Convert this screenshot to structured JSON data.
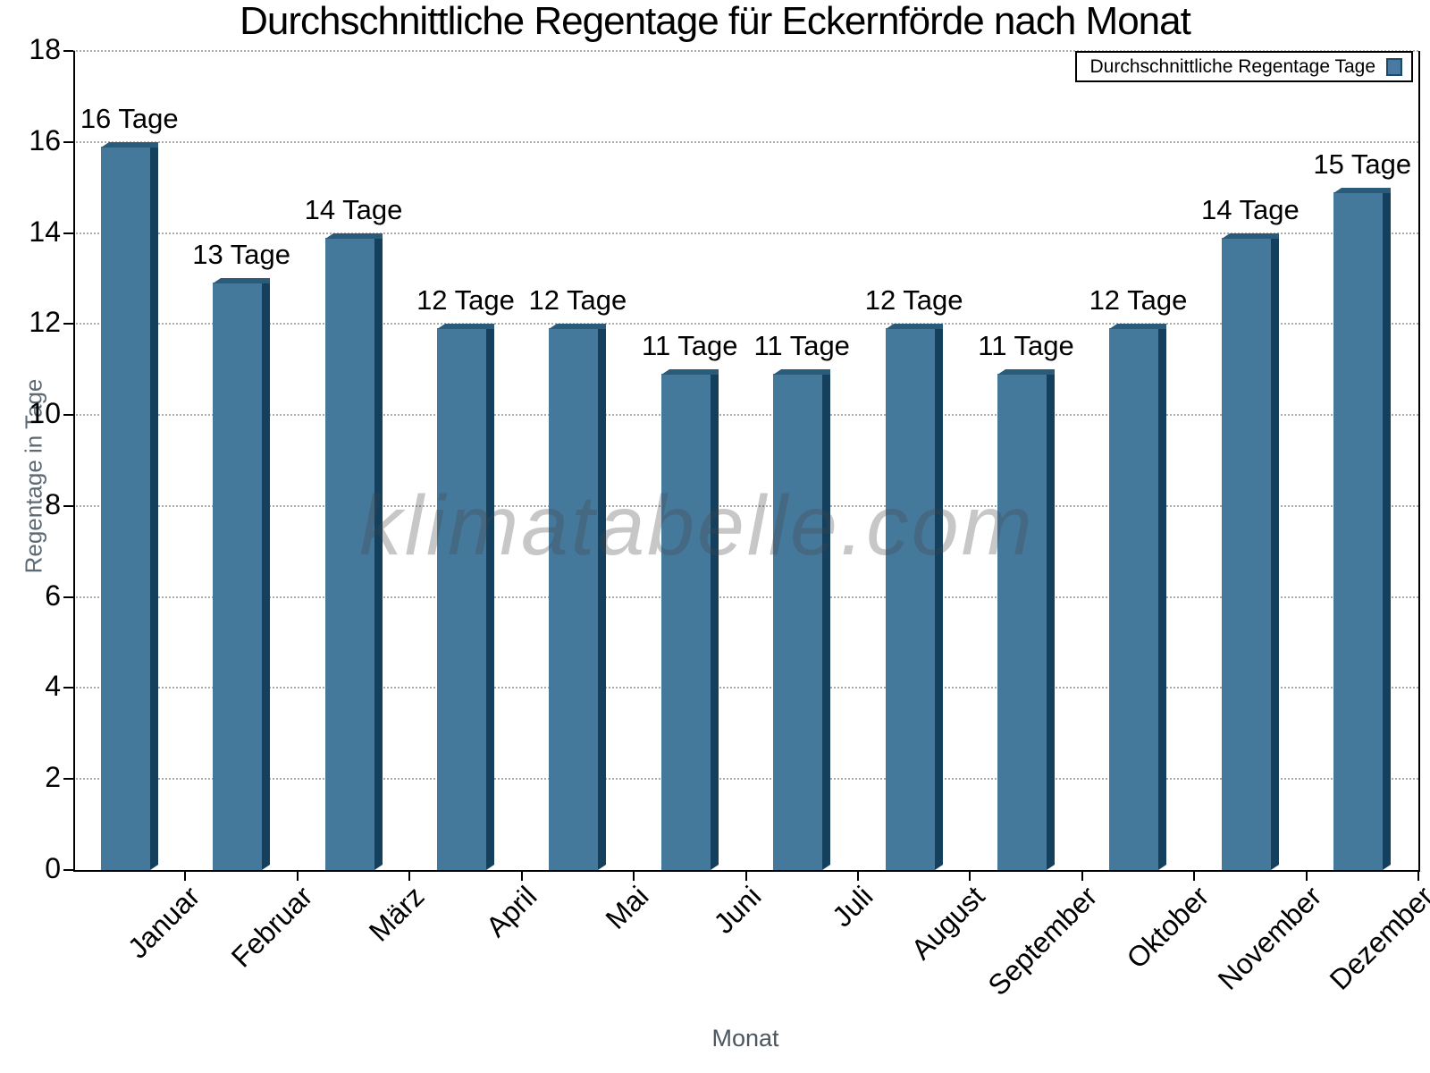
{
  "title": "Durchschnittliche Regentage für Eckernförde nach Monat",
  "watermark": "klimatabelle.com",
  "legend": {
    "label": "Durchschnittliche Regentage Tage"
  },
  "axes": {
    "ylabel": "Regentage in Tage",
    "xlabel": "Monat"
  },
  "colors": {
    "bar_face": "#45799C",
    "bar_side": "#14405D",
    "bar_top": "#2A5B7B",
    "legend_swatch_fill": "#4779A3",
    "legend_swatch_border": "#1C4864",
    "grid": "#ababab",
    "axis": "#000000",
    "axis_title": "#5c6a75"
  },
  "chart_data": {
    "type": "bar",
    "title": "Durchschnittliche Regentage für Eckernförde nach Monat",
    "xlabel": "Monat",
    "ylabel": "Regentage in Tage",
    "categories": [
      "Januar",
      "Februar",
      "März",
      "April",
      "Mai",
      "Juni",
      "Juli",
      "August",
      "September",
      "Oktober",
      "November",
      "Dezember"
    ],
    "values": [
      16,
      13,
      14,
      12,
      12,
      11,
      11,
      12,
      11,
      12,
      14,
      15
    ],
    "data_labels": [
      "16 Tage",
      "13 Tage",
      "14 Tage",
      "12 Tage",
      "12 Tage",
      "11 Tage",
      "11 Tage",
      "12 Tage",
      "11 Tage",
      "12 Tage",
      "14 Tage",
      "15 Tage"
    ],
    "series_name": "Durchschnittliche Regentage Tage",
    "ylim": [
      0,
      18
    ],
    "yticks": [
      0,
      2,
      4,
      6,
      8,
      10,
      12,
      14,
      16,
      18
    ],
    "ytick_labels": [
      "0",
      "2",
      "4",
      "6",
      "8",
      "10",
      "12",
      "14",
      "16",
      "18"
    ],
    "grid": "horizontal-dotted",
    "legend_position": "top-right",
    "watermark": "klimatabelle.com"
  }
}
